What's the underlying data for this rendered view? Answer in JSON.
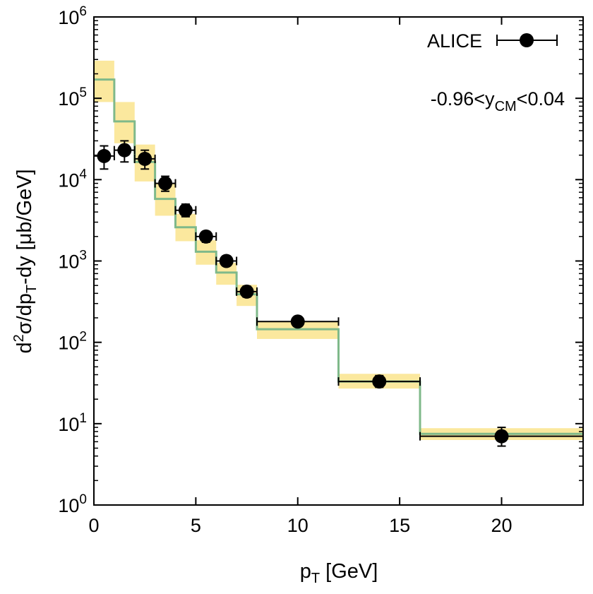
{
  "chart_data": {
    "type": "scatter",
    "x_scale": "linear",
    "y_scale": "log",
    "xlim": [
      0,
      24
    ],
    "ylim": [
      1,
      1000000
    ],
    "x_ticks": [
      {
        "value": 0,
        "label": "0"
      },
      {
        "value": 5,
        "label": "5"
      },
      {
        "value": 10,
        "label": "10"
      },
      {
        "value": 15,
        "label": "15"
      },
      {
        "value": 20,
        "label": "20"
      }
    ],
    "y_ticks": [
      {
        "value": 1,
        "base": "10",
        "exp": "0"
      },
      {
        "value": 10,
        "base": "10",
        "exp": "1"
      },
      {
        "value": 100,
        "base": "10",
        "exp": "2"
      },
      {
        "value": 1000,
        "base": "10",
        "exp": "3"
      },
      {
        "value": 10000,
        "base": "10",
        "exp": "4"
      },
      {
        "value": 100000,
        "base": "10",
        "exp": "5"
      },
      {
        "value": 1000000,
        "base": "10",
        "exp": "6"
      }
    ],
    "xlabel": {
      "main": "p",
      "sub": "T",
      "rest": " [GeV]"
    },
    "ylabel": {
      "pre": "d",
      "sup": "2",
      "mid": "σ/dp",
      "sub": "T",
      "rest": "-dy [μb/GeV]"
    },
    "annotation": {
      "pre": "-0.96<y",
      "sub": "CM",
      "rest": "<0.04"
    },
    "legend": {
      "label": "ALICE",
      "position": "top-right"
    },
    "grid": false,
    "series": [
      {
        "name": "ALICE",
        "kind": "points",
        "color": "#000000",
        "points": [
          {
            "x": 0.5,
            "y": 19500,
            "xlo": 0.0,
            "xhi": 1.0,
            "ylo": 13500,
            "yhi": 26000
          },
          {
            "x": 1.5,
            "y": 23000,
            "xlo": 1.0,
            "xhi": 2.0,
            "ylo": 16500,
            "yhi": 30000
          },
          {
            "x": 2.5,
            "y": 18000,
            "xlo": 2.0,
            "xhi": 3.0,
            "ylo": 13500,
            "yhi": 23000
          },
          {
            "x": 3.5,
            "y": 9000,
            "xlo": 3.0,
            "xhi": 4.0,
            "ylo": 7200,
            "yhi": 11000
          },
          {
            "x": 4.5,
            "y": 4200,
            "xlo": 4.0,
            "xhi": 5.0,
            "ylo": 3500,
            "yhi": 5000
          },
          {
            "x": 5.5,
            "y": 2000,
            "xlo": 5.0,
            "xhi": 6.0,
            "ylo": 1700,
            "yhi": 2300
          },
          {
            "x": 6.5,
            "y": 1000,
            "xlo": 6.0,
            "xhi": 7.0,
            "ylo": 870,
            "yhi": 1150
          },
          {
            "x": 7.5,
            "y": 420,
            "xlo": 7.0,
            "xhi": 8.0,
            "ylo": 360,
            "yhi": 490
          },
          {
            "x": 10.0,
            "y": 180,
            "xlo": 8.0,
            "xhi": 12.0,
            "ylo": 160,
            "yhi": 205
          },
          {
            "x": 14.0,
            "y": 33,
            "xlo": 12.0,
            "xhi": 16.0,
            "ylo": 28,
            "yhi": 39
          },
          {
            "x": 20.0,
            "y": 7,
            "xlo": 16.0,
            "xhi": 24.0,
            "ylo": 5.3,
            "yhi": 9
          }
        ]
      },
      {
        "name": "",
        "kind": "step-with-band",
        "line_color": "#7fb98a",
        "band_color": "#fbe89e",
        "bins": [
          {
            "x0": 0,
            "x1": 1,
            "y": 170000,
            "lo": 90000,
            "hi": 290000
          },
          {
            "x0": 1,
            "x1": 2,
            "y": 52000,
            "lo": 28000,
            "hi": 90000
          },
          {
            "x0": 2,
            "x1": 3,
            "y": 16500,
            "lo": 9500,
            "hi": 27000
          },
          {
            "x0": 3,
            "x1": 4,
            "y": 5800,
            "lo": 3600,
            "hi": 9000
          },
          {
            "x0": 4,
            "x1": 5,
            "y": 2600,
            "lo": 1750,
            "hi": 3800
          },
          {
            "x0": 5,
            "x1": 6,
            "y": 1300,
            "lo": 900,
            "hi": 1800
          },
          {
            "x0": 6,
            "x1": 7,
            "y": 720,
            "lo": 510,
            "hi": 950
          },
          {
            "x0": 7,
            "x1": 8,
            "y": 390,
            "lo": 280,
            "hi": 510
          },
          {
            "x0": 8,
            "x1": 12,
            "y": 145,
            "lo": 110,
            "hi": 180
          },
          {
            "x0": 12,
            "x1": 16,
            "y": 33,
            "lo": 27,
            "hi": 41
          },
          {
            "x0": 16,
            "x1": 24,
            "y": 7.5,
            "lo": 6.3,
            "hi": 8.8
          }
        ]
      }
    ]
  }
}
